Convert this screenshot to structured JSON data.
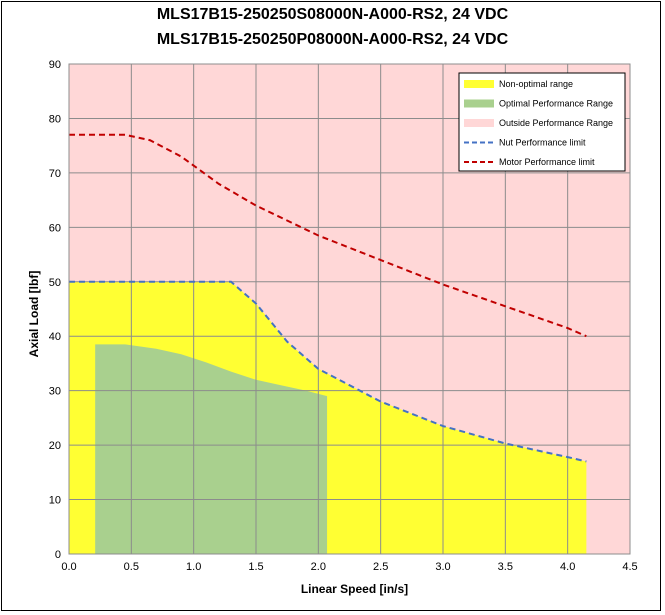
{
  "chart_data": {
    "type": "area",
    "title": "MLS17B15-250250S08000N-A000-RS2, 24 VDC",
    "subtitle": "MLS17B15-250250P08000N-A000-RS2, 24 VDC",
    "xlabel": "Linear Speed [in/s]",
    "ylabel": "Axial Load [lbf]",
    "xlim": [
      0,
      4.5
    ],
    "ylim": [
      0,
      90
    ],
    "xticks": [
      "0.0",
      "0.5",
      "1.0",
      "1.5",
      "2.0",
      "2.5",
      "3.0",
      "3.5",
      "4.0",
      "4.5"
    ],
    "yticks": [
      "0",
      "10",
      "20",
      "30",
      "40",
      "50",
      "60",
      "70",
      "80",
      "90"
    ],
    "grid": true,
    "legend_position": "top-right",
    "series": [
      {
        "name": "Non-optimal range",
        "kind": "area",
        "color": "#ffff33",
        "x": [
          0,
          1.3,
          1.5,
          1.75,
          2.0,
          2.5,
          3.0,
          3.5,
          4.0,
          4.15
        ],
        "y": [
          50,
          50,
          46,
          39,
          34,
          28,
          23.5,
          20.3,
          17.8,
          17
        ]
      },
      {
        "name": "Optimal Performance Range",
        "kind": "area",
        "color": "#a9d08e",
        "x": [
          0.21,
          0.45,
          0.7,
          0.9,
          1.1,
          1.3,
          1.5,
          1.7,
          1.9,
          2.07
        ],
        "y": [
          38.5,
          38.5,
          37.7,
          36.7,
          35.2,
          33.5,
          32.0,
          31.0,
          30.0,
          29.0
        ]
      },
      {
        "name": "Outside Performance Range",
        "kind": "background",
        "color": "#ffd7d7"
      },
      {
        "name": "Nut Performance limit",
        "kind": "dashed-line",
        "color": "#4472c4",
        "x": [
          0,
          1.3,
          1.5,
          1.75,
          2.0,
          2.5,
          3.0,
          3.5,
          4.0,
          4.15
        ],
        "y": [
          50,
          50,
          46,
          39,
          34,
          28,
          23.5,
          20.3,
          17.8,
          17
        ]
      },
      {
        "name": "Motor Performance limit",
        "kind": "dashed-line",
        "color": "#c00000",
        "x": [
          0,
          0.45,
          0.65,
          0.9,
          1.2,
          1.5,
          2.0,
          2.5,
          3.0,
          3.5,
          4.0,
          4.15
        ],
        "y": [
          77,
          77,
          76,
          73,
          68,
          64,
          58.5,
          54,
          49.5,
          45.5,
          41.5,
          40
        ]
      }
    ]
  }
}
